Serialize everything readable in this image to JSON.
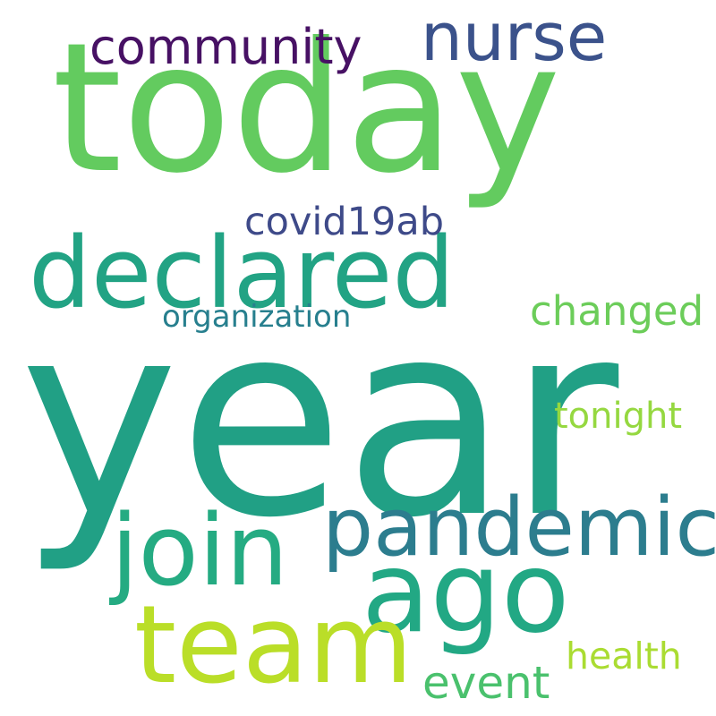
{
  "words": [
    {
      "text": "year",
      "color": "#21a085"
    },
    {
      "text": "today",
      "color": "#63cb5f"
    },
    {
      "text": "declared",
      "color": "#22a384"
    },
    {
      "text": "pandemic",
      "color": "#2c7d8e"
    },
    {
      "text": "join",
      "color": "#25ab82"
    },
    {
      "text": "ago",
      "color": "#22a884"
    },
    {
      "text": "team",
      "color": "#bade28"
    },
    {
      "text": "nurse",
      "color": "#3b528b"
    },
    {
      "text": "community",
      "color": "#471164"
    },
    {
      "text": "covid19ab",
      "color": "#3e4a89"
    },
    {
      "text": "changed",
      "color": "#6ccd5a"
    },
    {
      "text": "organization",
      "color": "#277f8e"
    },
    {
      "text": "tonight",
      "color": "#95d840"
    },
    {
      "text": "health",
      "color": "#aadc32"
    },
    {
      "text": "event",
      "color": "#4ac16d"
    }
  ]
}
